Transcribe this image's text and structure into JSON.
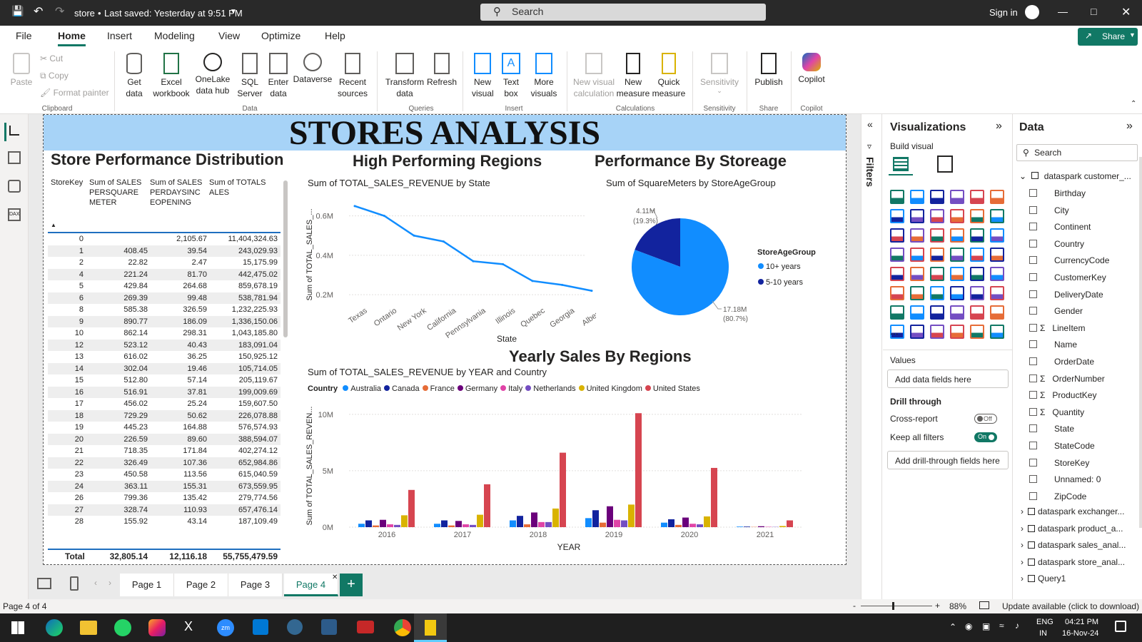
{
  "window": {
    "file_name": "store",
    "save_status": "Last saved: Yesterday at 9:51 PM",
    "search_placeholder": "Search",
    "sign_in": "Sign in"
  },
  "menu": {
    "items": [
      "File",
      "Home",
      "Insert",
      "Modeling",
      "View",
      "Optimize",
      "Help"
    ],
    "active": "Home",
    "share": "Share"
  },
  "ribbon": {
    "clipboard": {
      "paste": "Paste",
      "cut": "Cut",
      "copy": "Copy",
      "format_painter": "Format painter",
      "group": "Clipboard"
    },
    "data": {
      "get_data": "Get data",
      "excel": "Excel workbook",
      "onelake": "OneLake data hub",
      "sql": "SQL Server",
      "enter": "Enter data",
      "dataverse": "Dataverse",
      "recent": "Recent sources",
      "group": "Data"
    },
    "queries": {
      "transform": "Transform data",
      "refresh": "Refresh",
      "group": "Queries"
    },
    "insert": {
      "new_visual": "New visual",
      "text_box": "Text box",
      "more_visuals": "More visuals",
      "group": "Insert"
    },
    "calculations": {
      "new_visual_calc": "New visual calculation",
      "new_measure": "New measure",
      "quick_measure": "Quick measure",
      "group": "Calculations"
    },
    "sensitivity": {
      "label": "Sensitivity",
      "group": "Sensitivity"
    },
    "share": {
      "publish": "Publish",
      "group": "Share"
    },
    "copilot": {
      "label": "Copilot",
      "group": "Copilot"
    }
  },
  "report": {
    "banner": "STORES ANALYSIS",
    "table_visual": {
      "title": "Store Performance Distribution",
      "headers": [
        "StoreKey",
        "Sum of SALESPERSQUAREMETER",
        "Sum of SALESPERDAYSINCEOPENING",
        "Sum of TOTALSALES"
      ],
      "rows": [
        [
          "0",
          "",
          "2,105.67",
          "11,404,324.63"
        ],
        [
          "1",
          "408.45",
          "39.54",
          "243,029.93"
        ],
        [
          "2",
          "22.82",
          "2.47",
          "15,175.99"
        ],
        [
          "4",
          "221.24",
          "81.70",
          "442,475.02"
        ],
        [
          "5",
          "429.84",
          "264.68",
          "859,678.19"
        ],
        [
          "6",
          "269.39",
          "99.48",
          "538,781.94"
        ],
        [
          "8",
          "585.38",
          "326.59",
          "1,232,225.93"
        ],
        [
          "9",
          "890.77",
          "186.09",
          "1,336,150.06"
        ],
        [
          "10",
          "862.14",
          "298.31",
          "1,043,185.80"
        ],
        [
          "12",
          "523.12",
          "40.43",
          "183,091.04"
        ],
        [
          "13",
          "616.02",
          "36.25",
          "150,925.12"
        ],
        [
          "14",
          "302.04",
          "19.46",
          "105,714.05"
        ],
        [
          "15",
          "512.80",
          "57.14",
          "205,119.67"
        ],
        [
          "16",
          "516.91",
          "37.81",
          "199,009.69"
        ],
        [
          "17",
          "456.02",
          "25.24",
          "159,607.50"
        ],
        [
          "18",
          "729.29",
          "50.62",
          "226,078.88"
        ],
        [
          "19",
          "445.23",
          "164.88",
          "576,574.93"
        ],
        [
          "20",
          "226.59",
          "89.60",
          "388,594.07"
        ],
        [
          "21",
          "718.35",
          "171.84",
          "402,274.12"
        ],
        [
          "22",
          "326.49",
          "107.36",
          "652,984.86"
        ],
        [
          "23",
          "450.58",
          "113.56",
          "615,040.59"
        ],
        [
          "24",
          "363.11",
          "155.31",
          "673,559.95"
        ],
        [
          "26",
          "799.36",
          "135.42",
          "279,774.56"
        ],
        [
          "27",
          "328.74",
          "110.93",
          "657,476.14"
        ],
        [
          "28",
          "155.92",
          "43.14",
          "187,109.49"
        ]
      ],
      "total": [
        "Total",
        "32,805.14",
        "12,116.18",
        "55,755,479.59"
      ]
    }
  },
  "chart_data": [
    {
      "type": "line",
      "title": "High Performing Regions",
      "subtitle": "Sum of TOTAL_SALES_REVENUE by State",
      "xlabel": "State",
      "ylabel": "Sum of TOTAL_SALES_...",
      "categories": [
        "Texas",
        "Ontario",
        "New York",
        "California",
        "Pennsylvania",
        "Illinois",
        "Quebec",
        "Georgia",
        "Alberta"
      ],
      "values": [
        0.65,
        0.6,
        0.5,
        0.47,
        0.37,
        0.355,
        0.27,
        0.25,
        0.22
      ],
      "yticks": [
        "0.2M",
        "0.4M",
        "0.6M"
      ],
      "ylim": [
        0.15,
        0.7
      ],
      "color": "#118dff"
    },
    {
      "type": "pie",
      "title": "Performance By Storeage",
      "subtitle": "Sum of SquareMeters by StoreAgeGroup",
      "legend_title": "StoreAgeGroup",
      "slices": [
        {
          "name": "10+ years",
          "value": 17.18,
          "label": "17.18M",
          "pct": "(80.7%)",
          "color": "#118dff"
        },
        {
          "name": "5-10 years",
          "value": 4.11,
          "label": "4.11M",
          "pct": "(19.3%)",
          "color": "#12239e"
        }
      ]
    },
    {
      "type": "bar",
      "title": "Yearly Sales By Regions",
      "subtitle": "Sum of TOTAL_SALES_REVENUE by YEAR and Country",
      "legend_title": "Country",
      "xlabel": "YEAR",
      "ylabel": "Sum of TOTAL_SALES_REVEN...",
      "categories": [
        "2016",
        "2017",
        "2018",
        "2019",
        "2020",
        "2021"
      ],
      "yticks": [
        "0M",
        "5M",
        "10M"
      ],
      "ylim": [
        0,
        11
      ],
      "series": [
        {
          "name": "Australia",
          "color": "#118dff",
          "values": [
            0.3,
            0.3,
            0.6,
            0.8,
            0.4,
            0.05
          ]
        },
        {
          "name": "Canada",
          "color": "#12239e",
          "values": [
            0.6,
            0.6,
            1.0,
            1.5,
            0.7,
            0.05
          ]
        },
        {
          "name": "France",
          "color": "#e66c37",
          "values": [
            0.15,
            0.15,
            0.25,
            0.4,
            0.2,
            0.02
          ]
        },
        {
          "name": "Germany",
          "color": "#6b007b",
          "values": [
            0.65,
            0.55,
            1.3,
            1.85,
            0.85,
            0.08
          ]
        },
        {
          "name": "Italy",
          "color": "#e044a7",
          "values": [
            0.25,
            0.25,
            0.45,
            0.65,
            0.3,
            0.03
          ]
        },
        {
          "name": "Netherlands",
          "color": "#744ec2",
          "values": [
            0.2,
            0.2,
            0.45,
            0.6,
            0.25,
            0.02
          ]
        },
        {
          "name": "United Kingdom",
          "color": "#d9b300",
          "values": [
            1.05,
            1.1,
            1.65,
            2.0,
            0.95,
            0.1
          ]
        },
        {
          "name": "United States",
          "color": "#d64550",
          "values": [
            3.3,
            3.8,
            6.6,
            10.1,
            5.25,
            0.6
          ]
        }
      ]
    }
  ],
  "pages": {
    "tabs": [
      "Page 1",
      "Page 2",
      "Page 3",
      "Page 4"
    ],
    "active": "Page 4",
    "status": "Page 4 of 4",
    "zoom": "88%",
    "update": "Update available (click to download)"
  },
  "filters_label": "Filters",
  "visualizations": {
    "title": "Visualizations",
    "build_visual": "Build visual",
    "values_label": "Values",
    "add_data_fields": "Add data fields here",
    "drill_through": "Drill through",
    "cross_report": "Cross-report",
    "cross_report_state": "Off",
    "keep_filters": "Keep all filters",
    "keep_filters_state": "On",
    "add_drill": "Add drill-through fields here",
    "more": "..."
  },
  "data_pane": {
    "title": "Data",
    "search_placeholder": "Search",
    "table_open": "dataspark customer_...",
    "fields": [
      "Birthday",
      "City",
      "Continent",
      "Country",
      "CurrencyCode",
      "CustomerKey",
      "DeliveryDate",
      "Gender",
      "LineItem",
      "Name",
      "OrderDate",
      "OrderNumber",
      "ProductKey",
      "Quantity",
      "State",
      "StateCode",
      "StoreKey",
      "Unnamed: 0",
      "ZipCode"
    ],
    "sigma_fields": [
      "LineItem",
      "OrderNumber",
      "ProductKey",
      "Quantity"
    ],
    "other_tables": [
      "dataspark exchanger...",
      "dataspark product_a...",
      "dataspark sales_anal...",
      "dataspark store_anal...",
      "Query1"
    ]
  },
  "taskbar": {
    "lang": "ENG",
    "region": "IN",
    "time": "04:21 PM",
    "date": "16-Nov-24"
  }
}
